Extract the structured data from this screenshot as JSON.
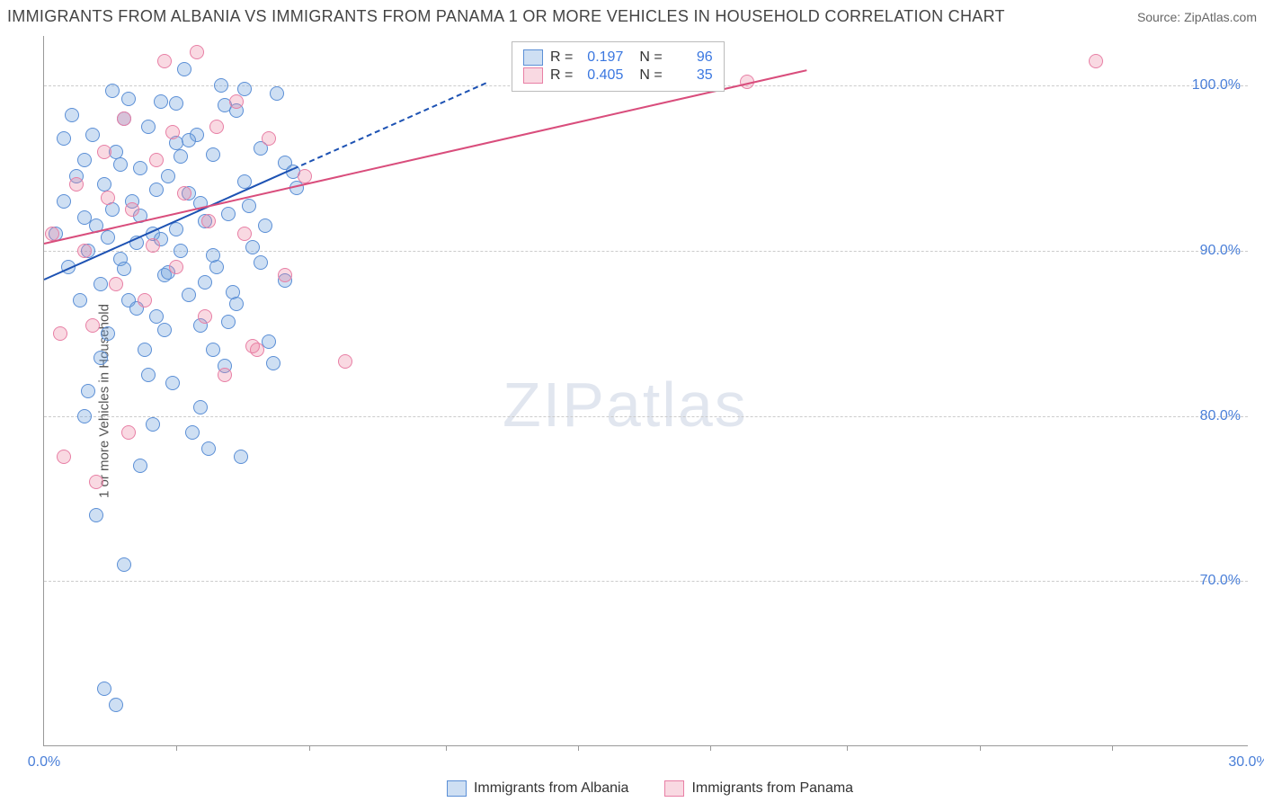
{
  "title": "IMMIGRANTS FROM ALBANIA VS IMMIGRANTS FROM PANAMA 1 OR MORE VEHICLES IN HOUSEHOLD CORRELATION CHART",
  "source_label": "Source: ZipAtlas.com",
  "y_axis_label": "1 or more Vehicles in Household",
  "chart": {
    "type": "scatter",
    "xlim": [
      0,
      30
    ],
    "ylim": [
      60,
      103
    ],
    "x_ticks": [
      0,
      30
    ],
    "x_tick_labels": [
      "0.0%",
      "30.0%"
    ],
    "x_minor_ticks": [
      3.3,
      6.6,
      10,
      13.3,
      16.6,
      20,
      23.3,
      26.6
    ],
    "y_ticks": [
      70,
      80,
      90,
      100
    ],
    "y_tick_labels": [
      "70.0%",
      "80.0%",
      "90.0%",
      "100.0%"
    ],
    "grid_color": "#cccccc",
    "background_color": "#ffffff",
    "axis_color": "#999999",
    "tick_label_color": "#4a7fd8",
    "point_radius": 8,
    "series": [
      {
        "name": "Immigrants from Albania",
        "fill": "rgba(116,162,222,0.35)",
        "stroke": "#5b8fd6",
        "trend_color": "#1d52b3",
        "R": "0.197",
        "N": "96",
        "trend_x1": 0,
        "trend_y1": 88.3,
        "trend_x2": 6.2,
        "trend_y2": 95.0,
        "trend_dash_x2": 11.0,
        "trend_dash_y2": 100.2,
        "points": [
          [
            0.3,
            91
          ],
          [
            0.5,
            93
          ],
          [
            0.6,
            89
          ],
          [
            0.8,
            94.5
          ],
          [
            1.0,
            92
          ],
          [
            1.0,
            95.5
          ],
          [
            1.1,
            90
          ],
          [
            1.2,
            97
          ],
          [
            1.3,
            91.5
          ],
          [
            1.4,
            88
          ],
          [
            1.5,
            94
          ],
          [
            1.6,
            85
          ],
          [
            1.7,
            92.5
          ],
          [
            1.8,
            96
          ],
          [
            1.9,
            89.5
          ],
          [
            2.0,
            98
          ],
          [
            2.1,
            87
          ],
          [
            2.2,
            93
          ],
          [
            2.3,
            90.5
          ],
          [
            2.4,
            95
          ],
          [
            2.5,
            84
          ],
          [
            2.6,
            97.5
          ],
          [
            2.7,
            91
          ],
          [
            2.8,
            86
          ],
          [
            2.9,
            99
          ],
          [
            3.0,
            88.5
          ],
          [
            3.1,
            94.5
          ],
          [
            3.2,
            82
          ],
          [
            3.3,
            96.5
          ],
          [
            3.4,
            90
          ],
          [
            3.5,
            101
          ],
          [
            3.6,
            93.5
          ],
          [
            3.7,
            79
          ],
          [
            3.8,
            97
          ],
          [
            3.9,
            85.5
          ],
          [
            4.0,
            91.8
          ],
          [
            4.1,
            78
          ],
          [
            4.2,
            95.8
          ],
          [
            4.3,
            89
          ],
          [
            4.4,
            100
          ],
          [
            4.5,
            83
          ],
          [
            4.6,
            92.2
          ],
          [
            4.7,
            87.5
          ],
          [
            4.8,
            98.5
          ],
          [
            4.9,
            77.5
          ],
          [
            5.0,
            94.2
          ],
          [
            5.2,
            90.2
          ],
          [
            5.4,
            96.2
          ],
          [
            5.6,
            84.5
          ],
          [
            5.8,
            99.5
          ],
          [
            6.0,
            88.2
          ],
          [
            6.3,
            93.8
          ],
          [
            1.0,
            80
          ],
          [
            1.3,
            74
          ],
          [
            1.5,
            63.5
          ],
          [
            1.8,
            62.5
          ],
          [
            2.0,
            71
          ],
          [
            0.5,
            96.8
          ],
          [
            0.7,
            98.2
          ],
          [
            0.9,
            87
          ],
          [
            1.1,
            81.5
          ],
          [
            1.4,
            83.5
          ],
          [
            1.6,
            90.8
          ],
          [
            1.9,
            95.2
          ],
          [
            2.1,
            99.2
          ],
          [
            2.3,
            86.5
          ],
          [
            2.6,
            82.5
          ],
          [
            2.8,
            93.7
          ],
          [
            3.1,
            88.7
          ],
          [
            3.3,
            91.3
          ],
          [
            3.6,
            96.7
          ],
          [
            3.9,
            80.5
          ],
          [
            4.2,
            84
          ],
          [
            4.5,
            98.8
          ],
          [
            4.8,
            86.8
          ],
          [
            5.1,
            92.7
          ],
          [
            5.4,
            89.3
          ],
          [
            5.7,
            83.2
          ],
          [
            6.0,
            95.3
          ],
          [
            2.4,
            77
          ],
          [
            2.7,
            79.5
          ],
          [
            3.0,
            85.2
          ],
          [
            3.3,
            98.9
          ],
          [
            3.6,
            87.3
          ],
          [
            3.9,
            92.9
          ],
          [
            4.2,
            89.7
          ],
          [
            4.6,
            85.7
          ],
          [
            5.0,
            99.8
          ],
          [
            5.5,
            91.5
          ],
          [
            6.2,
            94.8
          ],
          [
            1.7,
            99.7
          ],
          [
            2.0,
            88.9
          ],
          [
            2.4,
            92.1
          ],
          [
            2.9,
            90.7
          ],
          [
            3.4,
            95.7
          ],
          [
            4.0,
            88.1
          ]
        ]
      },
      {
        "name": "Immigrants from Panama",
        "fill": "rgba(235,130,160,0.30)",
        "stroke": "#e87fa5",
        "trend_color": "#d94d7c",
        "R": "0.405",
        "N": "35",
        "trend_x1": 0,
        "trend_y1": 90.5,
        "trend_x2": 19.0,
        "trend_y2": 101.0,
        "points": [
          [
            0.2,
            91
          ],
          [
            0.5,
            77.5
          ],
          [
            0.8,
            94
          ],
          [
            1.0,
            90
          ],
          [
            1.2,
            85.5
          ],
          [
            1.5,
            96
          ],
          [
            1.8,
            88
          ],
          [
            2.0,
            98
          ],
          [
            2.2,
            92.5
          ],
          [
            2.5,
            87
          ],
          [
            2.8,
            95.5
          ],
          [
            3.0,
            101.5
          ],
          [
            3.3,
            89
          ],
          [
            3.5,
            93.5
          ],
          [
            3.8,
            102
          ],
          [
            4.0,
            86
          ],
          [
            4.3,
            97.5
          ],
          [
            4.5,
            82.5
          ],
          [
            4.8,
            99
          ],
          [
            5.0,
            91
          ],
          [
            5.3,
            84
          ],
          [
            5.6,
            96.8
          ],
          [
            6.0,
            88.5
          ],
          [
            6.5,
            94.5
          ],
          [
            1.3,
            76
          ],
          [
            2.1,
            79
          ],
          [
            3.2,
            97.2
          ],
          [
            4.1,
            91.8
          ],
          [
            5.2,
            84.2
          ],
          [
            7.5,
            83.3
          ],
          [
            17.5,
            100.2
          ],
          [
            26.2,
            101.5
          ],
          [
            0.4,
            85
          ],
          [
            1.6,
            93.2
          ],
          [
            2.7,
            90.3
          ]
        ]
      }
    ]
  },
  "legend_stats_header": {
    "R_label": "R =",
    "N_label": "N ="
  },
  "watermark": {
    "zip": "ZIP",
    "atlas": "atlas"
  }
}
